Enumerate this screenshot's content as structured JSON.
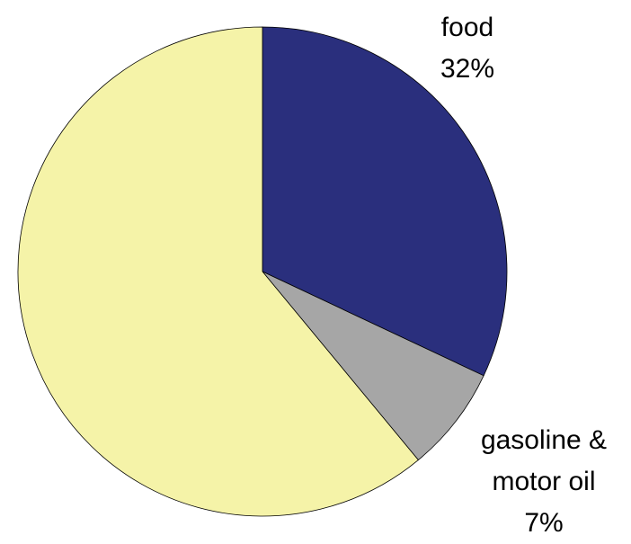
{
  "chart_data": {
    "type": "pie",
    "categories": [
      "food",
      "gasoline & motor oil",
      null
    ],
    "values": [
      32,
      7,
      61
    ],
    "value_labels": [
      "32%",
      "7%",
      null
    ],
    "colors": [
      "#2a2f7d",
      "#a6a6a6",
      "#f5f3a8"
    ]
  }
}
